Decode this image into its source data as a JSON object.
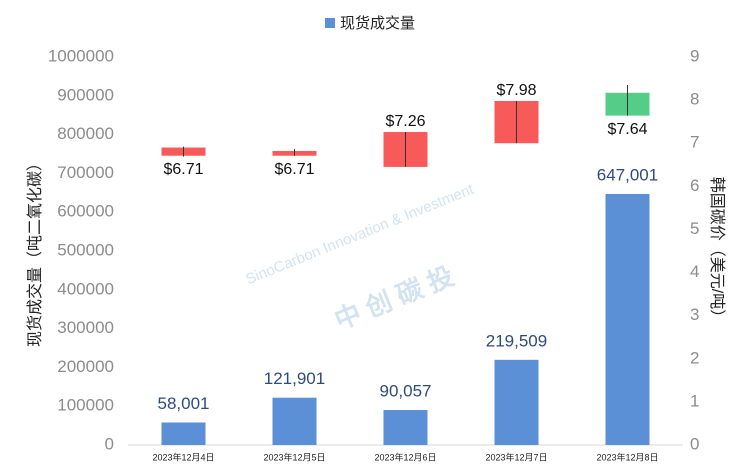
{
  "chart_data": {
    "type": "bar-candlestick",
    "watermark": [
      "SinoCarbon Innovation & Investment",
      "中 创 碳 投"
    ],
    "categories": [
      "2023年12月4日",
      "2023年12月5日",
      "2023年12月6日",
      "2023年12月7日",
      "2023年12月8日"
    ],
    "ylabel": "现货成交量（吨二氧化碳）",
    "y2label": "韩国碳价（美元/吨）",
    "ylim": [
      0,
      1000000
    ],
    "yticks": [
      0,
      100000,
      200000,
      300000,
      400000,
      500000,
      600000,
      700000,
      800000,
      900000,
      1000000
    ],
    "y2lim": [
      0,
      9
    ],
    "y2ticks": [
      0,
      1,
      2,
      3,
      4,
      5,
      6,
      7,
      8,
      9
    ],
    "legend": "top",
    "series": [
      {
        "name": "现货成交量",
        "color": "#5b8fd6",
        "values": [
          58001,
          121901,
          90057,
          219509,
          647001
        ],
        "value_labels": [
          "58,001",
          "121,901",
          "90,057",
          "219,509",
          "647,001"
        ]
      },
      {
        "type": "candlestick",
        "axis": "y2",
        "colors": [
          "#f85a5a",
          "#f85a5a",
          "#f85a5a",
          "#f85a5a",
          "#55cc88"
        ],
        "open": [
          6.9,
          6.82,
          6.45,
          7.0,
          8.17
        ],
        "values": [
          6.71,
          6.71,
          7.26,
          7.98,
          7.64
        ],
        "high": [
          6.92,
          6.87,
          7.26,
          7.98,
          8.35
        ],
        "low": [
          6.69,
          6.71,
          6.45,
          7.0,
          7.64
        ],
        "value_labels": [
          "$6.71",
          "$6.71",
          "$7.26",
          "$7.98",
          "$7.64"
        ]
      }
    ]
  }
}
